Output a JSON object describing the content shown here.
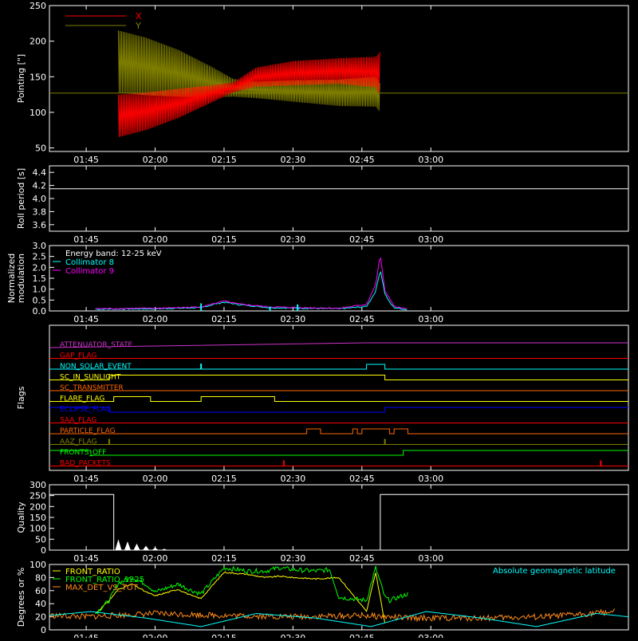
{
  "time_ticks": [
    "01:45",
    "02:00",
    "02:15",
    "02:30",
    "02:45",
    "03:00"
  ],
  "chart_data": [
    {
      "id": "pointing",
      "type": "line",
      "ylabel": "Pointing [\"]",
      "ylim": [
        45,
        250
      ],
      "yticks": [
        "50",
        "100",
        "150",
        "200",
        "250"
      ],
      "legend_placement": "top-left",
      "series": [
        {
          "name": "X",
          "color": "#ff0000",
          "envelope": [
            {
              "x": "01:52",
              "lo": 65,
              "hi": 125
            },
            {
              "x": "01:58",
              "lo": 75,
              "hi": 128
            },
            {
              "x": "02:05",
              "lo": 92,
              "hi": 133
            },
            {
              "x": "02:12",
              "lo": 113,
              "hi": 138
            },
            {
              "x": "02:17",
              "lo": 128,
              "hi": 142
            },
            {
              "x": "02:22",
              "lo": 136,
              "hi": 163
            },
            {
              "x": "02:30",
              "lo": 138,
              "hi": 172
            },
            {
              "x": "02:40",
              "lo": 140,
              "hi": 176
            },
            {
              "x": "02:48",
              "lo": 135,
              "hi": 178
            },
            {
              "x": "02:49",
              "lo": 123,
              "hi": 185
            }
          ]
        },
        {
          "name": "Y",
          "color": "#808000",
          "envelope": [
            {
              "x": "01:52",
              "lo": 128,
              "hi": 215
            },
            {
              "x": "01:58",
              "lo": 124,
              "hi": 205
            },
            {
              "x": "02:05",
              "lo": 122,
              "hi": 188
            },
            {
              "x": "02:12",
              "lo": 121,
              "hi": 165
            },
            {
              "x": "02:17",
              "lo": 122,
              "hi": 147
            },
            {
              "x": "02:22",
              "lo": 120,
              "hi": 143
            },
            {
              "x": "02:30",
              "lo": 115,
              "hi": 145
            },
            {
              "x": "02:40",
              "lo": 109,
              "hi": 146
            },
            {
              "x": "02:48",
              "lo": 108,
              "hi": 150
            },
            {
              "x": "02:49",
              "lo": 100,
              "hi": 140
            }
          ]
        }
      ],
      "baseline": 127
    },
    {
      "id": "roll",
      "type": "line",
      "ylabel": "Roll period [s]",
      "ylim": [
        3.5,
        4.5
      ],
      "yticks": [
        "3.6",
        "3.8",
        "4.0",
        "4.2",
        "4.4"
      ],
      "series": [
        {
          "color": "#ffffff",
          "x": [
            "01:37",
            "03:43"
          ],
          "y": [
            4.15,
            4.15
          ]
        }
      ]
    },
    {
      "id": "modulation",
      "type": "line",
      "ylabel": "Normalized modulation",
      "ylim": [
        0,
        3.0
      ],
      "yticks": [
        "0.0",
        "0.5",
        "1.0",
        "1.5",
        "2.0",
        "2.5",
        "3.0"
      ],
      "legend_placement": "top-left",
      "legend": [
        {
          "label": "Energy band: 12-25 keV",
          "color": "#ffffff"
        },
        {
          "label": "Collimator 8",
          "color": "#00ffff"
        },
        {
          "label": "Collimator 9",
          "color": "#ff00ff"
        }
      ],
      "series": [
        {
          "name": "Collimator 8",
          "color": "#00ffff",
          "x": [
            "01:47",
            "02:00",
            "02:10",
            "02:13",
            "02:15",
            "02:18",
            "02:25",
            "02:40",
            "02:46",
            "02:48",
            "02:49",
            "02:50",
            "02:51",
            "02:52",
            "02:55"
          ],
          "y": [
            0.08,
            0.1,
            0.15,
            0.32,
            0.4,
            0.3,
            0.15,
            0.1,
            0.2,
            0.9,
            1.9,
            0.8,
            0.4,
            0.15,
            0.05
          ]
        },
        {
          "name": "Collimator 9",
          "color": "#ff00ff",
          "x": [
            "01:47",
            "02:00",
            "02:10",
            "02:13",
            "02:15",
            "02:18",
            "02:25",
            "02:40",
            "02:46",
            "02:48",
            "02:49",
            "02:50",
            "02:51",
            "02:52",
            "02:55"
          ],
          "y": [
            0.1,
            0.12,
            0.18,
            0.35,
            0.45,
            0.32,
            0.18,
            0.12,
            0.3,
            1.2,
            2.6,
            0.9,
            0.6,
            0.2,
            0.07
          ]
        }
      ],
      "spikes": [
        {
          "x": "02:10",
          "y": 0.35,
          "color": "#00ffff"
        },
        {
          "x": "02:31",
          "y": 0.3,
          "color": "#00ffff"
        },
        {
          "x": "02:25",
          "y": 0.2,
          "color": "#00ffff"
        }
      ]
    },
    {
      "id": "flags",
      "type": "line",
      "ylabel": "Flags",
      "series": [
        {
          "name": "ATTENUATOR_STATE",
          "color": "#cc33cc",
          "steps": [
            [
              "01:37",
              0
            ],
            [
              "02:46",
              1
            ],
            [
              "03:43",
              1
            ]
          ]
        },
        {
          "name": "GAP_FLAG",
          "color": "#ff0000",
          "steps": [
            [
              "01:37",
              0
            ],
            [
              "03:43",
              0
            ]
          ]
        },
        {
          "name": "NON_SOLAR_EVENT",
          "color": "#00ffff",
          "steps": [
            [
              "01:37",
              0
            ],
            [
              "02:10",
              0
            ],
            [
              "02:10",
              1
            ],
            [
              "02:10",
              0
            ],
            [
              "02:46",
              0
            ],
            [
              "02:46",
              1
            ],
            [
              "02:50",
              1
            ],
            [
              "02:50",
              0
            ],
            [
              "03:43",
              0
            ]
          ],
          "spikes": [
            "02:10"
          ]
        },
        {
          "name": "SC_IN_SUNLIGHT",
          "color": "#ffff00",
          "steps": [
            [
              "01:37",
              0
            ],
            [
              "01:50",
              0
            ],
            [
              "01:50",
              1
            ],
            [
              "02:50",
              1
            ],
            [
              "02:50",
              0
            ],
            [
              "03:43",
              0
            ]
          ]
        },
        {
          "name": "SC_TRANSMITTER",
          "color": "#ff6600",
          "steps": [
            [
              "01:37",
              0
            ],
            [
              "03:43",
              0
            ]
          ]
        },
        {
          "name": "FLARE_FLAG",
          "color": "#ffff00",
          "steps": [
            [
              "01:37",
              0
            ],
            [
              "01:51",
              0
            ],
            [
              "01:51",
              1
            ],
            [
              "01:59",
              1
            ],
            [
              "01:59",
              0
            ],
            [
              "02:10",
              0
            ],
            [
              "02:10",
              1
            ],
            [
              "02:26",
              1
            ],
            [
              "02:26",
              0
            ],
            [
              "03:43",
              0
            ]
          ]
        },
        {
          "name": "ECLIPSE_FLAG",
          "color": "#0000ff",
          "steps": [
            [
              "01:37",
              1
            ],
            [
              "01:50",
              1
            ],
            [
              "01:50",
              0
            ],
            [
              "02:50",
              0
            ],
            [
              "02:50",
              1
            ],
            [
              "03:43",
              1
            ]
          ]
        },
        {
          "name": "SAA_FLAG",
          "color": "#ff0000",
          "steps": [
            [
              "01:37",
              0
            ],
            [
              "03:43",
              0
            ]
          ]
        },
        {
          "name": "PARTICLE_FLAG",
          "color": "#ff6600",
          "steps": [
            [
              "01:37",
              0
            ],
            [
              "02:33",
              0
            ],
            [
              "02:33",
              1
            ],
            [
              "02:36",
              1
            ],
            [
              "02:36",
              0
            ],
            [
              "02:43",
              0
            ],
            [
              "02:43",
              1
            ],
            [
              "02:44",
              1
            ],
            [
              "02:44",
              0
            ],
            [
              "02:45",
              0
            ],
            [
              "02:45",
              1
            ],
            [
              "02:51",
              1
            ],
            [
              "02:51",
              0
            ],
            [
              "02:52",
              0
            ],
            [
              "02:52",
              1
            ],
            [
              "02:55",
              1
            ],
            [
              "02:55",
              0
            ],
            [
              "03:43",
              0
            ]
          ]
        },
        {
          "name": "AAZ_FLAG",
          "color": "#808000",
          "steps": [
            [
              "01:37",
              0
            ],
            [
              "03:43",
              0
            ]
          ],
          "spikes": [
            "01:50",
            "02:50"
          ]
        },
        {
          "name": "FRONTS_OFF",
          "color": "#00ff00",
          "steps": [
            [
              "01:37",
              1
            ],
            [
              "01:46",
              1
            ],
            [
              "01:46",
              0
            ],
            [
              "02:54",
              0
            ],
            [
              "02:54",
              1
            ],
            [
              "03:43",
              1
            ]
          ]
        },
        {
          "name": "BAD_PACKETS",
          "color": "#ff0000",
          "steps": [
            [
              "01:37",
              0
            ],
            [
              "03:43",
              0
            ]
          ],
          "spikes": [
            "02:28",
            "03:37"
          ]
        }
      ]
    },
    {
      "id": "quality",
      "type": "line",
      "ylabel": "Quality",
      "ylim": [
        0,
        300
      ],
      "yticks": [
        "0",
        "50",
        "100",
        "150",
        "200",
        "250",
        "300"
      ],
      "series": [
        {
          "color": "#ffffff",
          "x": [
            "01:37",
            "01:51",
            "01:51",
            "02:49",
            "02:49",
            "03:43"
          ],
          "y": [
            255,
            255,
            0,
            0,
            255,
            255
          ],
          "bumps": [
            [
              "01:52",
              50
            ],
            [
              "01:54",
              40
            ],
            [
              "01:56",
              30
            ],
            [
              "01:58",
              20
            ],
            [
              "02:00",
              12
            ],
            [
              "02:02",
              6
            ]
          ]
        }
      ]
    },
    {
      "id": "ratios",
      "type": "line",
      "ylabel": "Degrees or %",
      "ylim": [
        0,
        100
      ],
      "yticks": [
        "0",
        "20",
        "40",
        "60",
        "80",
        "100"
      ],
      "legend_placement": "top-left",
      "legend": [
        {
          "label": "FRONT_RATIO",
          "color": "#ffff00"
        },
        {
          "label": "FRONT_RATIO_1225",
          "color": "#00ff00"
        },
        {
          "label": "MAX_DET_VS_TOT",
          "color": "#ff8c1a"
        }
      ],
      "annotation": {
        "text": "Absolute geomagnetic latitude",
        "color": "#00ffff",
        "placement": "top-right"
      },
      "series": [
        {
          "name": "FRONT_RATIO",
          "color": "#ffff00",
          "x": [
            "01:47",
            "01:50",
            "01:52",
            "01:55",
            "01:58",
            "02:00",
            "02:05",
            "02:08",
            "02:10",
            "02:15",
            "02:20",
            "02:24",
            "02:27",
            "02:30",
            "02:35",
            "02:40",
            "02:46",
            "02:48",
            "02:50"
          ],
          "y": [
            25,
            45,
            62,
            70,
            58,
            52,
            62,
            52,
            48,
            88,
            85,
            80,
            82,
            80,
            78,
            80,
            28,
            88,
            10
          ]
        },
        {
          "name": "FRONT_RATIO_1225",
          "color": "#00ff00",
          "x": [
            "01:47",
            "01:50",
            "01:52",
            "01:55",
            "01:58",
            "02:00",
            "02:05",
            "02:08",
            "02:10",
            "02:15",
            "02:20",
            "02:24",
            "02:27",
            "02:30",
            "02:35",
            "02:38",
            "02:40",
            "02:46",
            "02:48",
            "02:50",
            "02:51",
            "02:55",
            "02:55"
          ],
          "y": [
            25,
            45,
            72,
            80,
            70,
            58,
            70,
            60,
            55,
            95,
            90,
            90,
            95,
            92,
            90,
            92,
            50,
            45,
            95,
            50,
            45,
            55,
            0
          ]
        },
        {
          "name": "MAX_DET_VS_TOT",
          "color": "#ff8c1a",
          "x": [
            "01:37",
            "01:45",
            "02:00",
            "02:15",
            "02:30",
            "02:45",
            "02:55",
            "03:10",
            "03:25",
            "03:40"
          ],
          "y": [
            22,
            20,
            25,
            22,
            20,
            22,
            18,
            18,
            20,
            28
          ]
        },
        {
          "name": "Absolute geomagnetic latitude",
          "color": "#00ffff",
          "x": [
            "01:37",
            "01:46",
            "01:58",
            "02:10",
            "02:22",
            "02:35",
            "02:47",
            "02:59",
            "03:11",
            "03:23",
            "03:36",
            "03:43"
          ],
          "y": [
            22,
            28,
            18,
            5,
            25,
            18,
            5,
            28,
            18,
            5,
            25,
            20
          ]
        }
      ]
    }
  ]
}
